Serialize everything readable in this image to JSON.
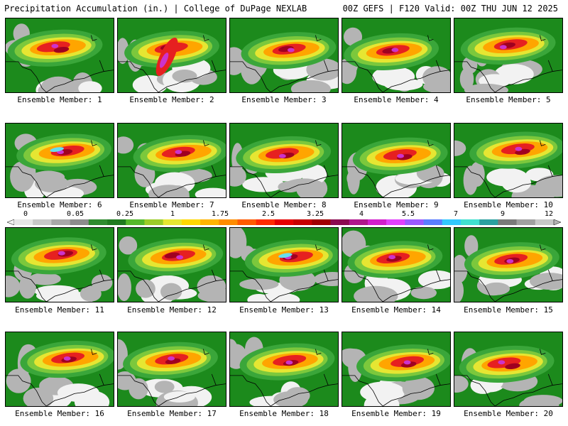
{
  "header": {
    "title": "Precipitation Accumulation (in.) | College of DuPage NEXLAB",
    "run_info": "00Z GEFS | F120 Valid: 00Z THU JUN 12 2025"
  },
  "panels": [
    {
      "label": "Ensemble Member: 1"
    },
    {
      "label": "Ensemble Member: 2"
    },
    {
      "label": "Ensemble Member: 3"
    },
    {
      "label": "Ensemble Member: 4"
    },
    {
      "label": "Ensemble Member: 5"
    },
    {
      "label": "Ensemble Member: 6"
    },
    {
      "label": "Ensemble Member: 7"
    },
    {
      "label": "Ensemble Member: 8"
    },
    {
      "label": "Ensemble Member: 9"
    },
    {
      "label": "Ensemble Member: 10"
    },
    {
      "label": "Ensemble Member: 11"
    },
    {
      "label": "Ensemble Member: 12"
    },
    {
      "label": "Ensemble Member: 13"
    },
    {
      "label": "Ensemble Member: 14"
    },
    {
      "label": "Ensemble Member: 15"
    },
    {
      "label": "Ensemble Member: 16"
    },
    {
      "label": "Ensemble Member: 17"
    },
    {
      "label": "Ensemble Member: 18"
    },
    {
      "label": "Ensemble Member: 19"
    },
    {
      "label": "Ensemble Member: 20"
    }
  ],
  "colorbar": {
    "tick_labels": [
      "0",
      "0.05",
      "0.25",
      "1",
      "1.75",
      "2.5",
      "3.25",
      "4",
      "5.5",
      "7",
      "9",
      "12"
    ],
    "colors": [
      "#e6e6e6",
      "#c8c8c8",
      "#a8a8a8",
      "#8c8c8c",
      "#2e8b2e",
      "#1f7a1f",
      "#55b82a",
      "#9ccc28",
      "#e6e632",
      "#ffd700",
      "#ffb400",
      "#ff8c00",
      "#ff5a00",
      "#ff2a00",
      "#e60000",
      "#c80000",
      "#a00000",
      "#8b0a50",
      "#b0148c",
      "#d21ecc",
      "#e040fb",
      "#9b59ff",
      "#5a7dff",
      "#32c8ff",
      "#40e0d0",
      "#2aa0a0",
      "#7a7a7a",
      "#a0a0a0",
      "#c8c8c8"
    ]
  },
  "map_colors": {
    "green_dark": "#1c8a1c",
    "green": "#3aa63a",
    "green_light": "#7cc83c",
    "yellow": "#e6e632",
    "orange": "#ffa500",
    "red": "#e62020",
    "darkred": "#a00020",
    "magenta": "#cc33cc",
    "purple": "#9966ff",
    "cyan": "#66ddee",
    "gray": "#b4b4b4",
    "white": "#f2f2f2"
  }
}
